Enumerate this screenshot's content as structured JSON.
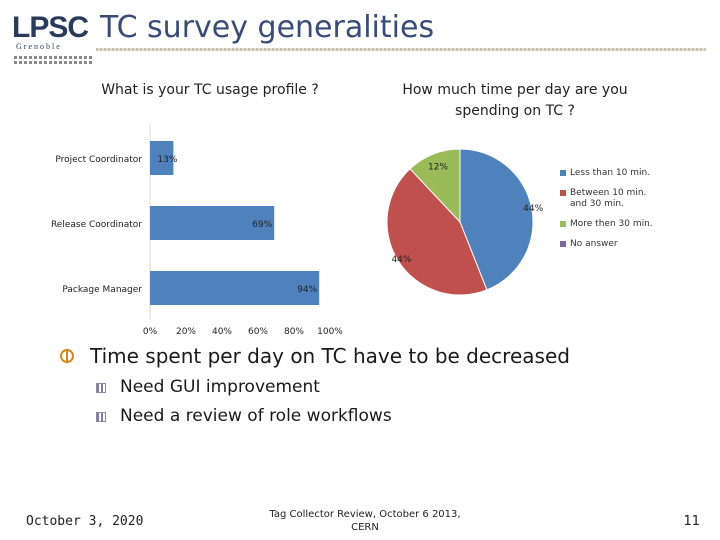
{
  "logo": {
    "brand": "LPSC",
    "subtitle": "Grenoble"
  },
  "slide": {
    "title": "TC survey generalities"
  },
  "chart_data": [
    {
      "type": "bar",
      "orientation": "horizontal",
      "title": "What is your TC usage profile ?",
      "categories": [
        "Project Coordinator",
        "Release Coordinator",
        "Package Manager"
      ],
      "values": [
        13,
        69,
        94
      ],
      "data_labels": [
        "13%",
        "69%",
        "94%"
      ],
      "color": "#4f81bd",
      "xlim": [
        0,
        100
      ],
      "xticks": [
        "0%",
        "20%",
        "40%",
        "60%",
        "80%",
        "100%"
      ],
      "grid": false
    },
    {
      "type": "pie",
      "title": "How much time per day are you spending on TC ?",
      "labels": [
        "Less than 10 min.",
        "Between 10 min. and 30 min.",
        "More then 30 min.",
        "No answer"
      ],
      "values": [
        44,
        44,
        12,
        0
      ],
      "data_labels": [
        "44%",
        "44%",
        "12%",
        ""
      ],
      "colors": [
        "#4f81bd",
        "#c0504d",
        "#9bbb59",
        "#8064a2"
      ],
      "legend": "right"
    }
  ],
  "bullets": {
    "main": "Time spent per day on TC have to be decreased",
    "subs": [
      "Need GUI improvement",
      "Need a review of role workflows"
    ]
  },
  "footer": {
    "date": "October 3, 2020",
    "center_line1": "Tag Collector Review, October 6 2013,",
    "center_line2": "CERN",
    "page": "11"
  }
}
